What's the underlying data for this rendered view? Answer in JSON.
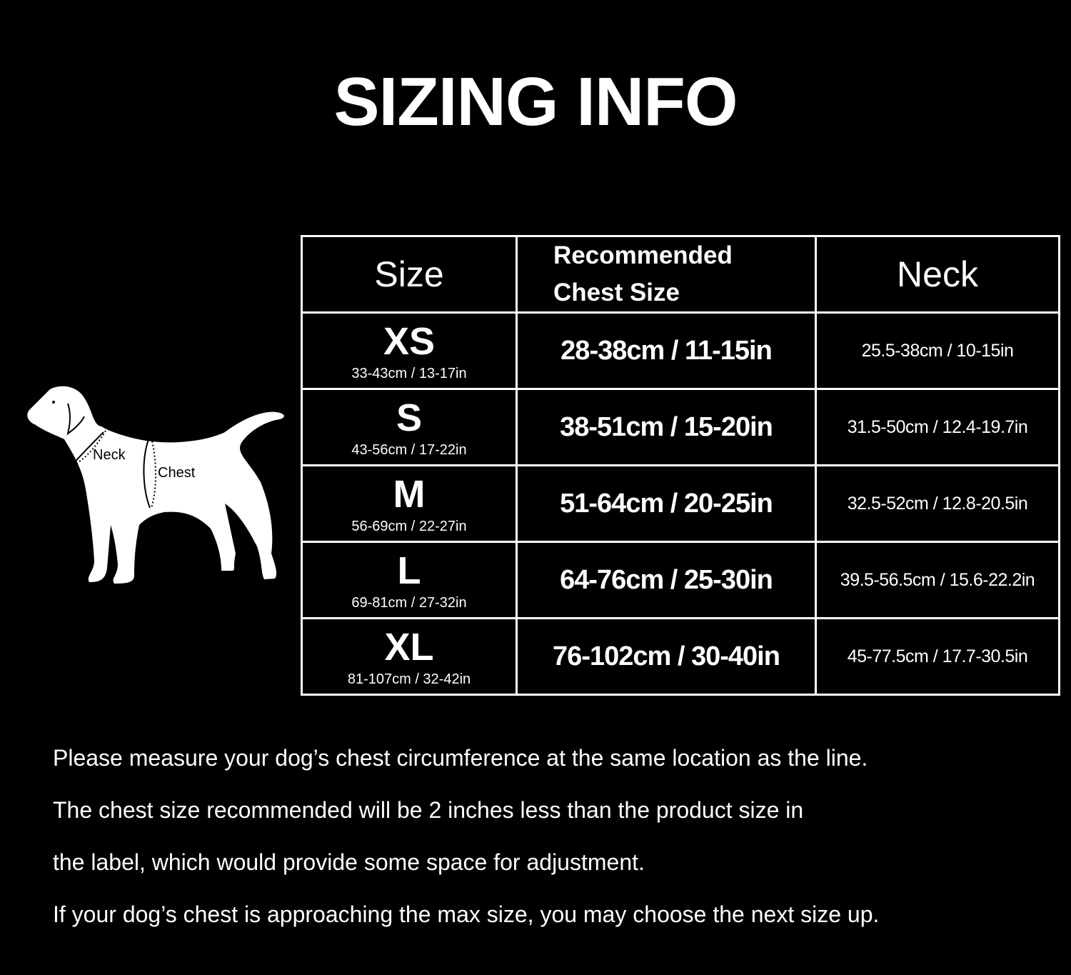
{
  "title": "SIZING INFO",
  "diagram": {
    "neck_label": "Neck",
    "chest_label": "Chest"
  },
  "table": {
    "headers": {
      "size": "Size",
      "chest_line1": "Recommended",
      "chest_line2": "Chest Size",
      "neck": "Neck"
    },
    "rows": [
      {
        "size": "XS",
        "product_size": "33-43cm / 13-17in",
        "chest": "28-38cm / 11-15in",
        "neck": "25.5-38cm / 10-15in"
      },
      {
        "size": "S",
        "product_size": "43-56cm / 17-22in",
        "chest": "38-51cm / 15-20in",
        "neck": "31.5-50cm / 12.4-19.7in"
      },
      {
        "size": "M",
        "product_size": "56-69cm / 22-27in",
        "chest": "51-64cm / 20-25in",
        "neck": "32.5-52cm / 12.8-20.5in"
      },
      {
        "size": "L",
        "product_size": "69-81cm / 27-32in",
        "chest": "64-76cm / 25-30in",
        "neck": "39.5-56.5cm / 15.6-22.2in"
      },
      {
        "size": "XL",
        "product_size": "81-107cm / 32-42in",
        "chest": "76-102cm / 30-40in",
        "neck": "45-77.5cm / 17.7-30.5in"
      }
    ]
  },
  "notes": [
    "Please measure your dog’s chest circumference at the same location as the line.",
    "The chest size recommended will be 2 inches less than the product size in",
    "the label, which would provide some space for adjustment.",
    "If your dog’s chest is approaching the max size, you may choose the next size up."
  ]
}
